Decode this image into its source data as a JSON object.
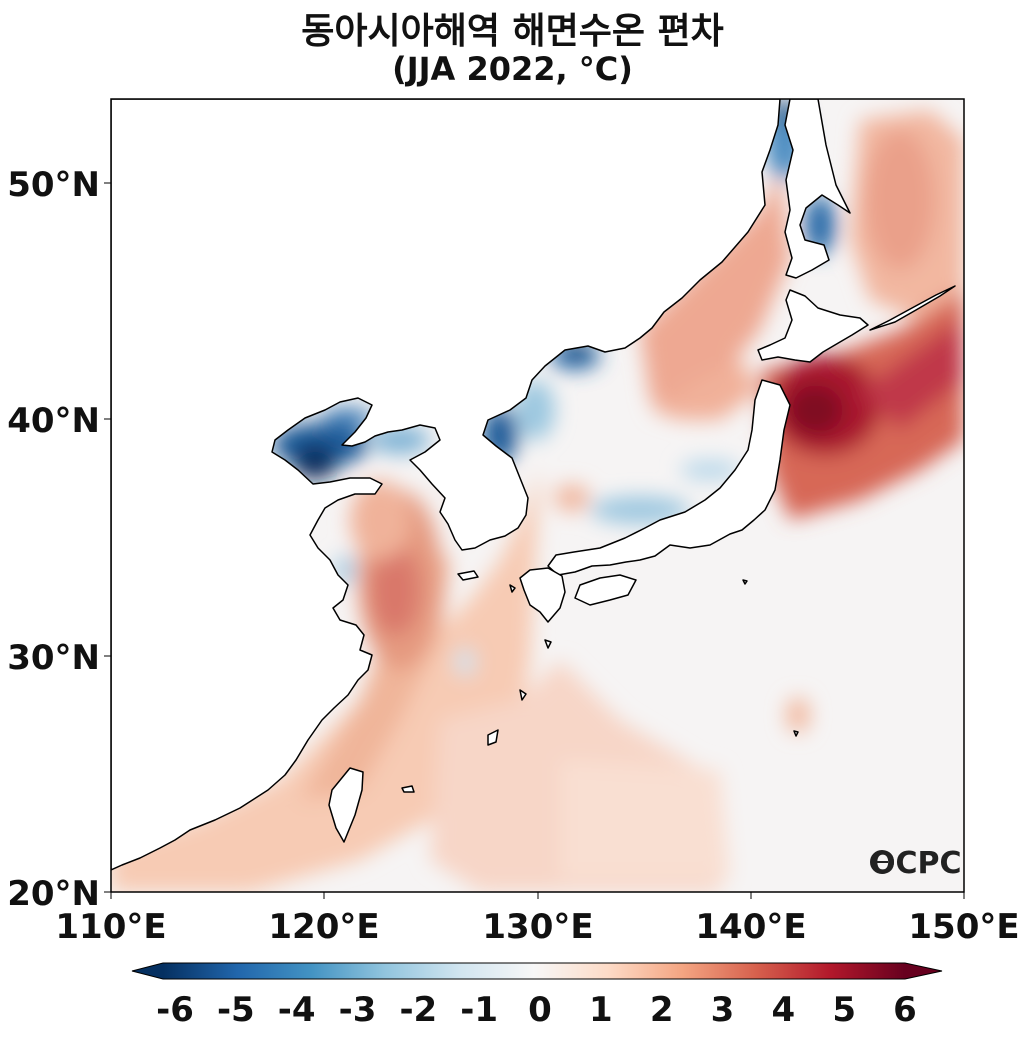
{
  "map": {
    "title": "동아시아해역 해면수온 편차",
    "subtitle": "(JJA 2022, °C)",
    "lon_ticks": [
      "110°E",
      "120°E",
      "130°E",
      "140°E",
      "150°E"
    ],
    "lat_ticks": [
      "20°N",
      "30°N",
      "40°N",
      "50°N"
    ],
    "lon_range": [
      110,
      150
    ],
    "lat_range": [
      20,
      53.5
    ],
    "watermark": "OCPC"
  },
  "colorbar": {
    "ticks": [
      "-6",
      "-5",
      "-4",
      "-3",
      "-2",
      "-1",
      "0",
      "1",
      "2",
      "3",
      "4",
      "5",
      "6"
    ],
    "range": [
      -6,
      6
    ],
    "colormap": "RdBu_r",
    "colors": [
      "#053061",
      "#2166ac",
      "#4393c3",
      "#92c5de",
      "#d1e5f0",
      "#f7f7f7",
      "#fddbc7",
      "#f4a582",
      "#d6604d",
      "#b2182b",
      "#67001f"
    ]
  }
}
